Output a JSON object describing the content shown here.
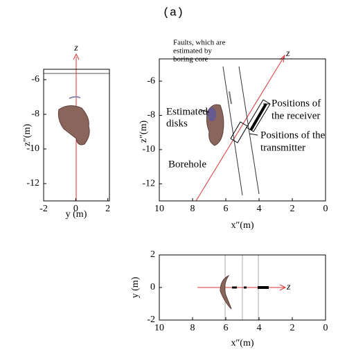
{
  "title": "(a)",
  "chart_data": [
    {
      "type": "scatter",
      "xlabel": "y (m)",
      "ylabel": "z″(m)",
      "axis_arrow_label": "z",
      "xlim": [
        -2,
        2.1
      ],
      "xticks": [
        -2,
        0,
        2
      ],
      "ylim": [
        -13,
        -5.4
      ],
      "yticks": [
        -6,
        -8,
        -10,
        -12
      ],
      "annotations": []
    },
    {
      "type": "scatter",
      "xlabel": "x″(m)",
      "ylabel": "z″(m)",
      "axis_arrow_label": "z",
      "xlim": [
        10,
        0
      ],
      "xticks": [
        10,
        8,
        6,
        4,
        2,
        0
      ],
      "ylim": [
        -13,
        -4.7
      ],
      "yticks": [
        -6,
        -8,
        -10,
        -12
      ],
      "annotations": [
        [
          "Faults, which are",
          "estimated by",
          "boring core"
        ],
        [
          "Estimated",
          "disks"
        ],
        [
          "Positions of",
          "the receiver"
        ],
        [
          "Positions of the",
          "transmitter"
        ],
        [
          "Borehole"
        ]
      ]
    },
    {
      "type": "scatter",
      "xlabel": "x″(m)",
      "ylabel": "y (m)",
      "axis_arrow_label": "z",
      "xlim": [
        10,
        0
      ],
      "xticks": [
        10,
        8,
        6,
        4,
        2,
        0
      ],
      "ylim": [
        -2,
        2
      ],
      "yticks": [
        2,
        0,
        -2
      ],
      "annotations": []
    }
  ]
}
